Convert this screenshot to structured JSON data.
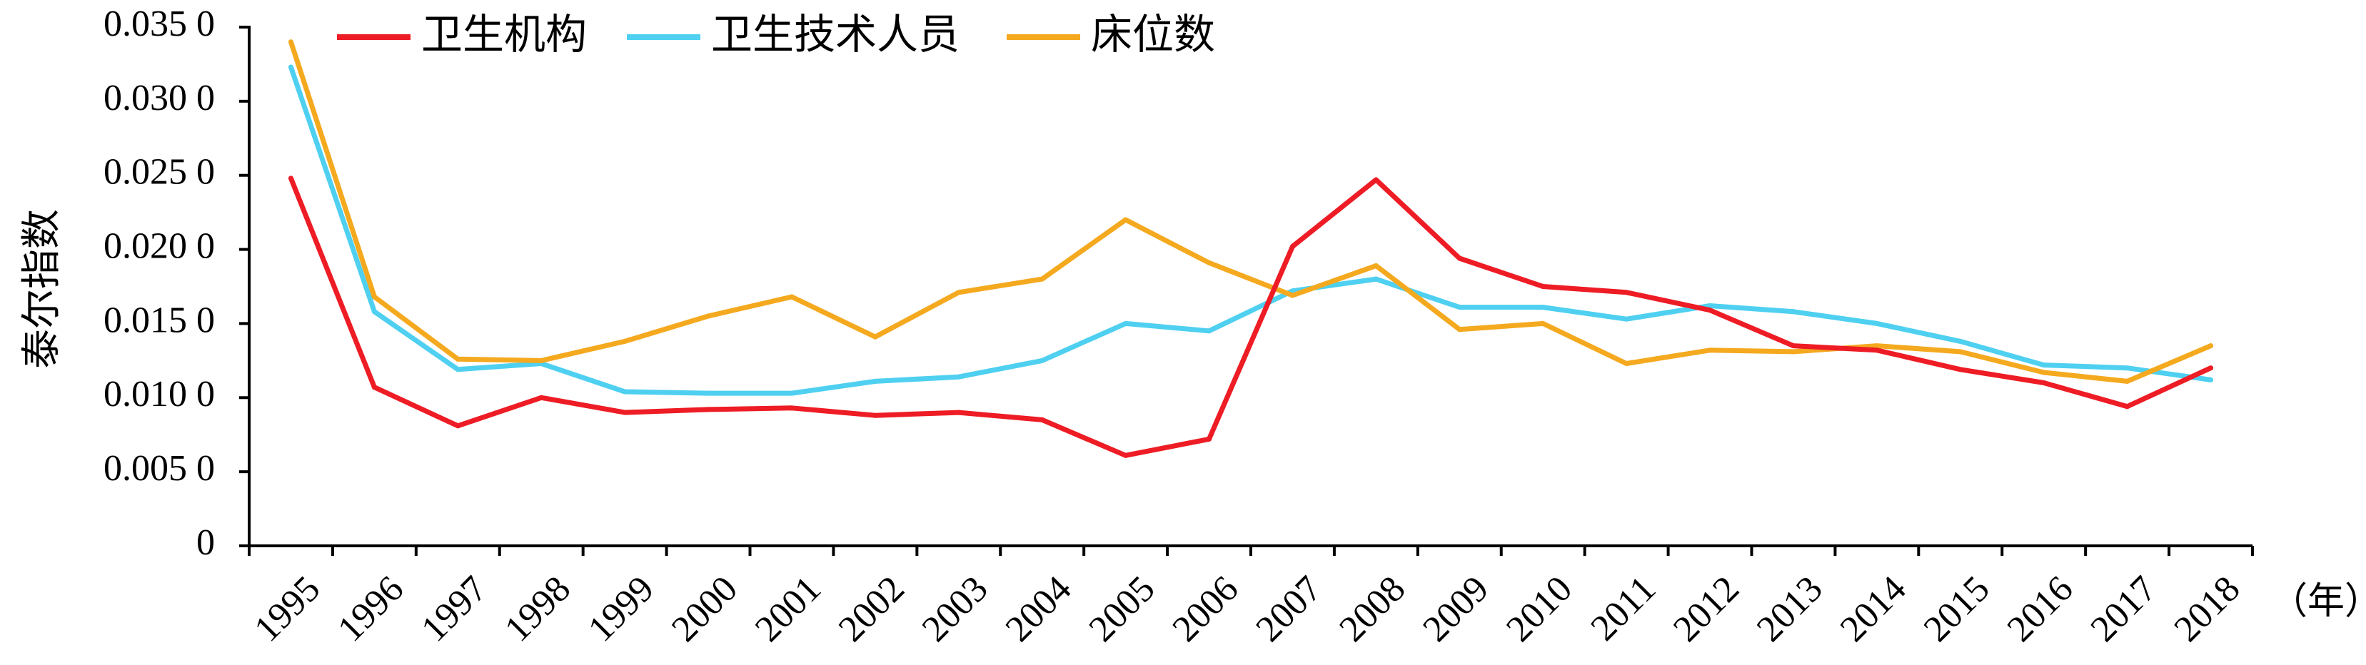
{
  "chart_data": {
    "type": "line",
    "title": "",
    "ylabel": "泰尔指数",
    "xlabel": "（年）",
    "ylim": [
      0,
      0.035
    ],
    "y_ticks": [
      "0",
      "0.005 0",
      "0.010 0",
      "0.015 0",
      "0.020 0",
      "0.025 0",
      "0.030 0",
      "0.035 0"
    ],
    "y_tick_values": [
      0,
      0.005,
      0.01,
      0.015,
      0.02,
      0.025,
      0.03,
      0.035
    ],
    "x": [
      "1995",
      "1996",
      "1997",
      "1998",
      "1999",
      "2000",
      "2001",
      "2002",
      "2003",
      "2004",
      "2005",
      "2006",
      "2007",
      "2008",
      "2009",
      "2010",
      "2011",
      "2012",
      "2013",
      "2014",
      "2015",
      "2016",
      "2017",
      "2018"
    ],
    "grid": false,
    "legend_position": "top-left",
    "series": [
      {
        "name": "卫生机构",
        "color": "#ee1c25",
        "values": [
          0.0248,
          0.0107,
          0.0081,
          0.01,
          0.009,
          0.0092,
          0.0093,
          0.0088,
          0.009,
          0.0085,
          0.0061,
          0.0072,
          0.0202,
          0.0247,
          0.0194,
          0.0175,
          0.0171,
          0.0159,
          0.0135,
          0.0132,
          0.0119,
          0.011,
          0.0094,
          0.012
        ]
      },
      {
        "name": "卫生技术人员",
        "color": "#4fd0f0",
        "values": [
          0.0323,
          0.0158,
          0.0119,
          0.0123,
          0.0104,
          0.0103,
          0.0103,
          0.0111,
          0.0114,
          0.0125,
          0.015,
          0.0145,
          0.0172,
          0.018,
          0.0161,
          0.0161,
          0.0153,
          0.0162,
          0.0158,
          0.015,
          0.0138,
          0.0122,
          0.012,
          0.0112
        ]
      },
      {
        "name": "床位数",
        "color": "#f4a91f",
        "values": [
          0.034,
          0.0168,
          0.0126,
          0.0125,
          0.0138,
          0.0155,
          0.0168,
          0.0141,
          0.0171,
          0.018,
          0.022,
          0.0191,
          0.0169,
          0.0189,
          0.0146,
          0.015,
          0.0123,
          0.0132,
          0.0131,
          0.0135,
          0.0131,
          0.0117,
          0.0111,
          0.0135
        ]
      }
    ]
  }
}
